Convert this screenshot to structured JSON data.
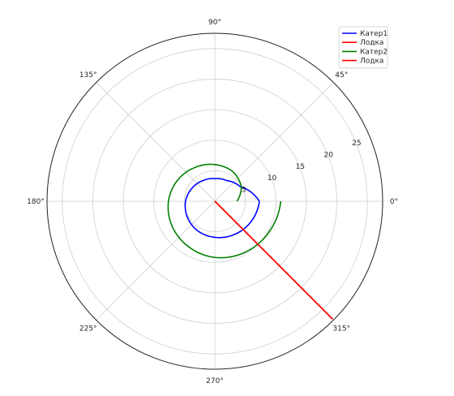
{
  "chart_data": {
    "type": "polar-line",
    "title": "",
    "angle_unit": "degrees",
    "angle_ticks": [
      "0°",
      "45°",
      "90°",
      "135°",
      "180°",
      "225°",
      "270°",
      "315°"
    ],
    "angle_tick_values": [
      0,
      45,
      90,
      135,
      180,
      225,
      270,
      315
    ],
    "radial_ticks": [
      "5",
      "10",
      "15",
      "20",
      "25"
    ],
    "radial_tick_values": [
      5,
      10,
      15,
      20,
      25
    ],
    "rlim": [
      0,
      27.5
    ],
    "radial_label_angle_deg": 22.5,
    "grid": true,
    "legend_position": "top-right",
    "series": [
      {
        "name": "Катер1",
        "kind": "spiral",
        "color": "#0000ff",
        "theta_deg": [
          0,
          30,
          60,
          90,
          120,
          150,
          180,
          210,
          240,
          270,
          300,
          330,
          360
        ],
        "r": [
          7.3,
          4.8,
          3.9,
          3.7,
          3.9,
          4.3,
          4.8,
          5.2,
          5.6,
          5.9,
          6.3,
          6.8,
          7.3
        ]
      },
      {
        "name": "Лодка",
        "kind": "ray",
        "color": "#ff0000",
        "theta_deg": [
          315,
          315
        ],
        "r": [
          0,
          27.3
        ]
      },
      {
        "name": "Катер2",
        "kind": "spiral",
        "color": "#008000",
        "theta_deg": [
          0,
          30,
          60,
          90,
          120,
          150,
          180,
          210,
          240,
          270,
          300,
          330,
          360
        ],
        "r": [
          3.6,
          5.0,
          5.7,
          6.0,
          6.4,
          7.0,
          7.6,
          8.1,
          8.6,
          9.2,
          9.7,
          10.2,
          10.8
        ]
      },
      {
        "name": "Лодка",
        "kind": "ray",
        "color": "#ff0000",
        "theta_deg": [
          315,
          315
        ],
        "r": [
          0,
          27.3
        ]
      }
    ]
  }
}
